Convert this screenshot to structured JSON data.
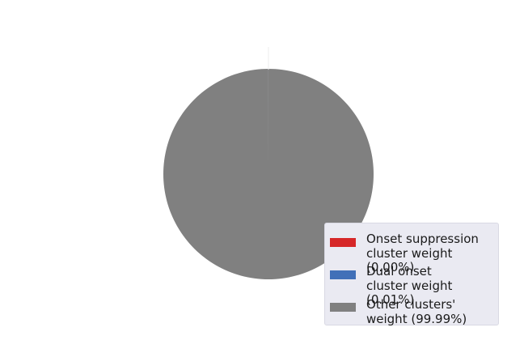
{
  "chart_data": {
    "type": "pie",
    "title": "",
    "categories": [
      "Onset suppression\ncluster weight (0.00%)",
      "Dual onset\ncluster weight (0.01%)",
      "Other clusters'\nweight (99.99%)"
    ],
    "values": [
      0.0,
      0.01,
      99.99
    ],
    "colors": [
      "#d62728",
      "#4170b8",
      "#808080"
    ],
    "start_angle_deg": 90,
    "counterclockwise": true,
    "legend_position": "lower-right"
  }
}
